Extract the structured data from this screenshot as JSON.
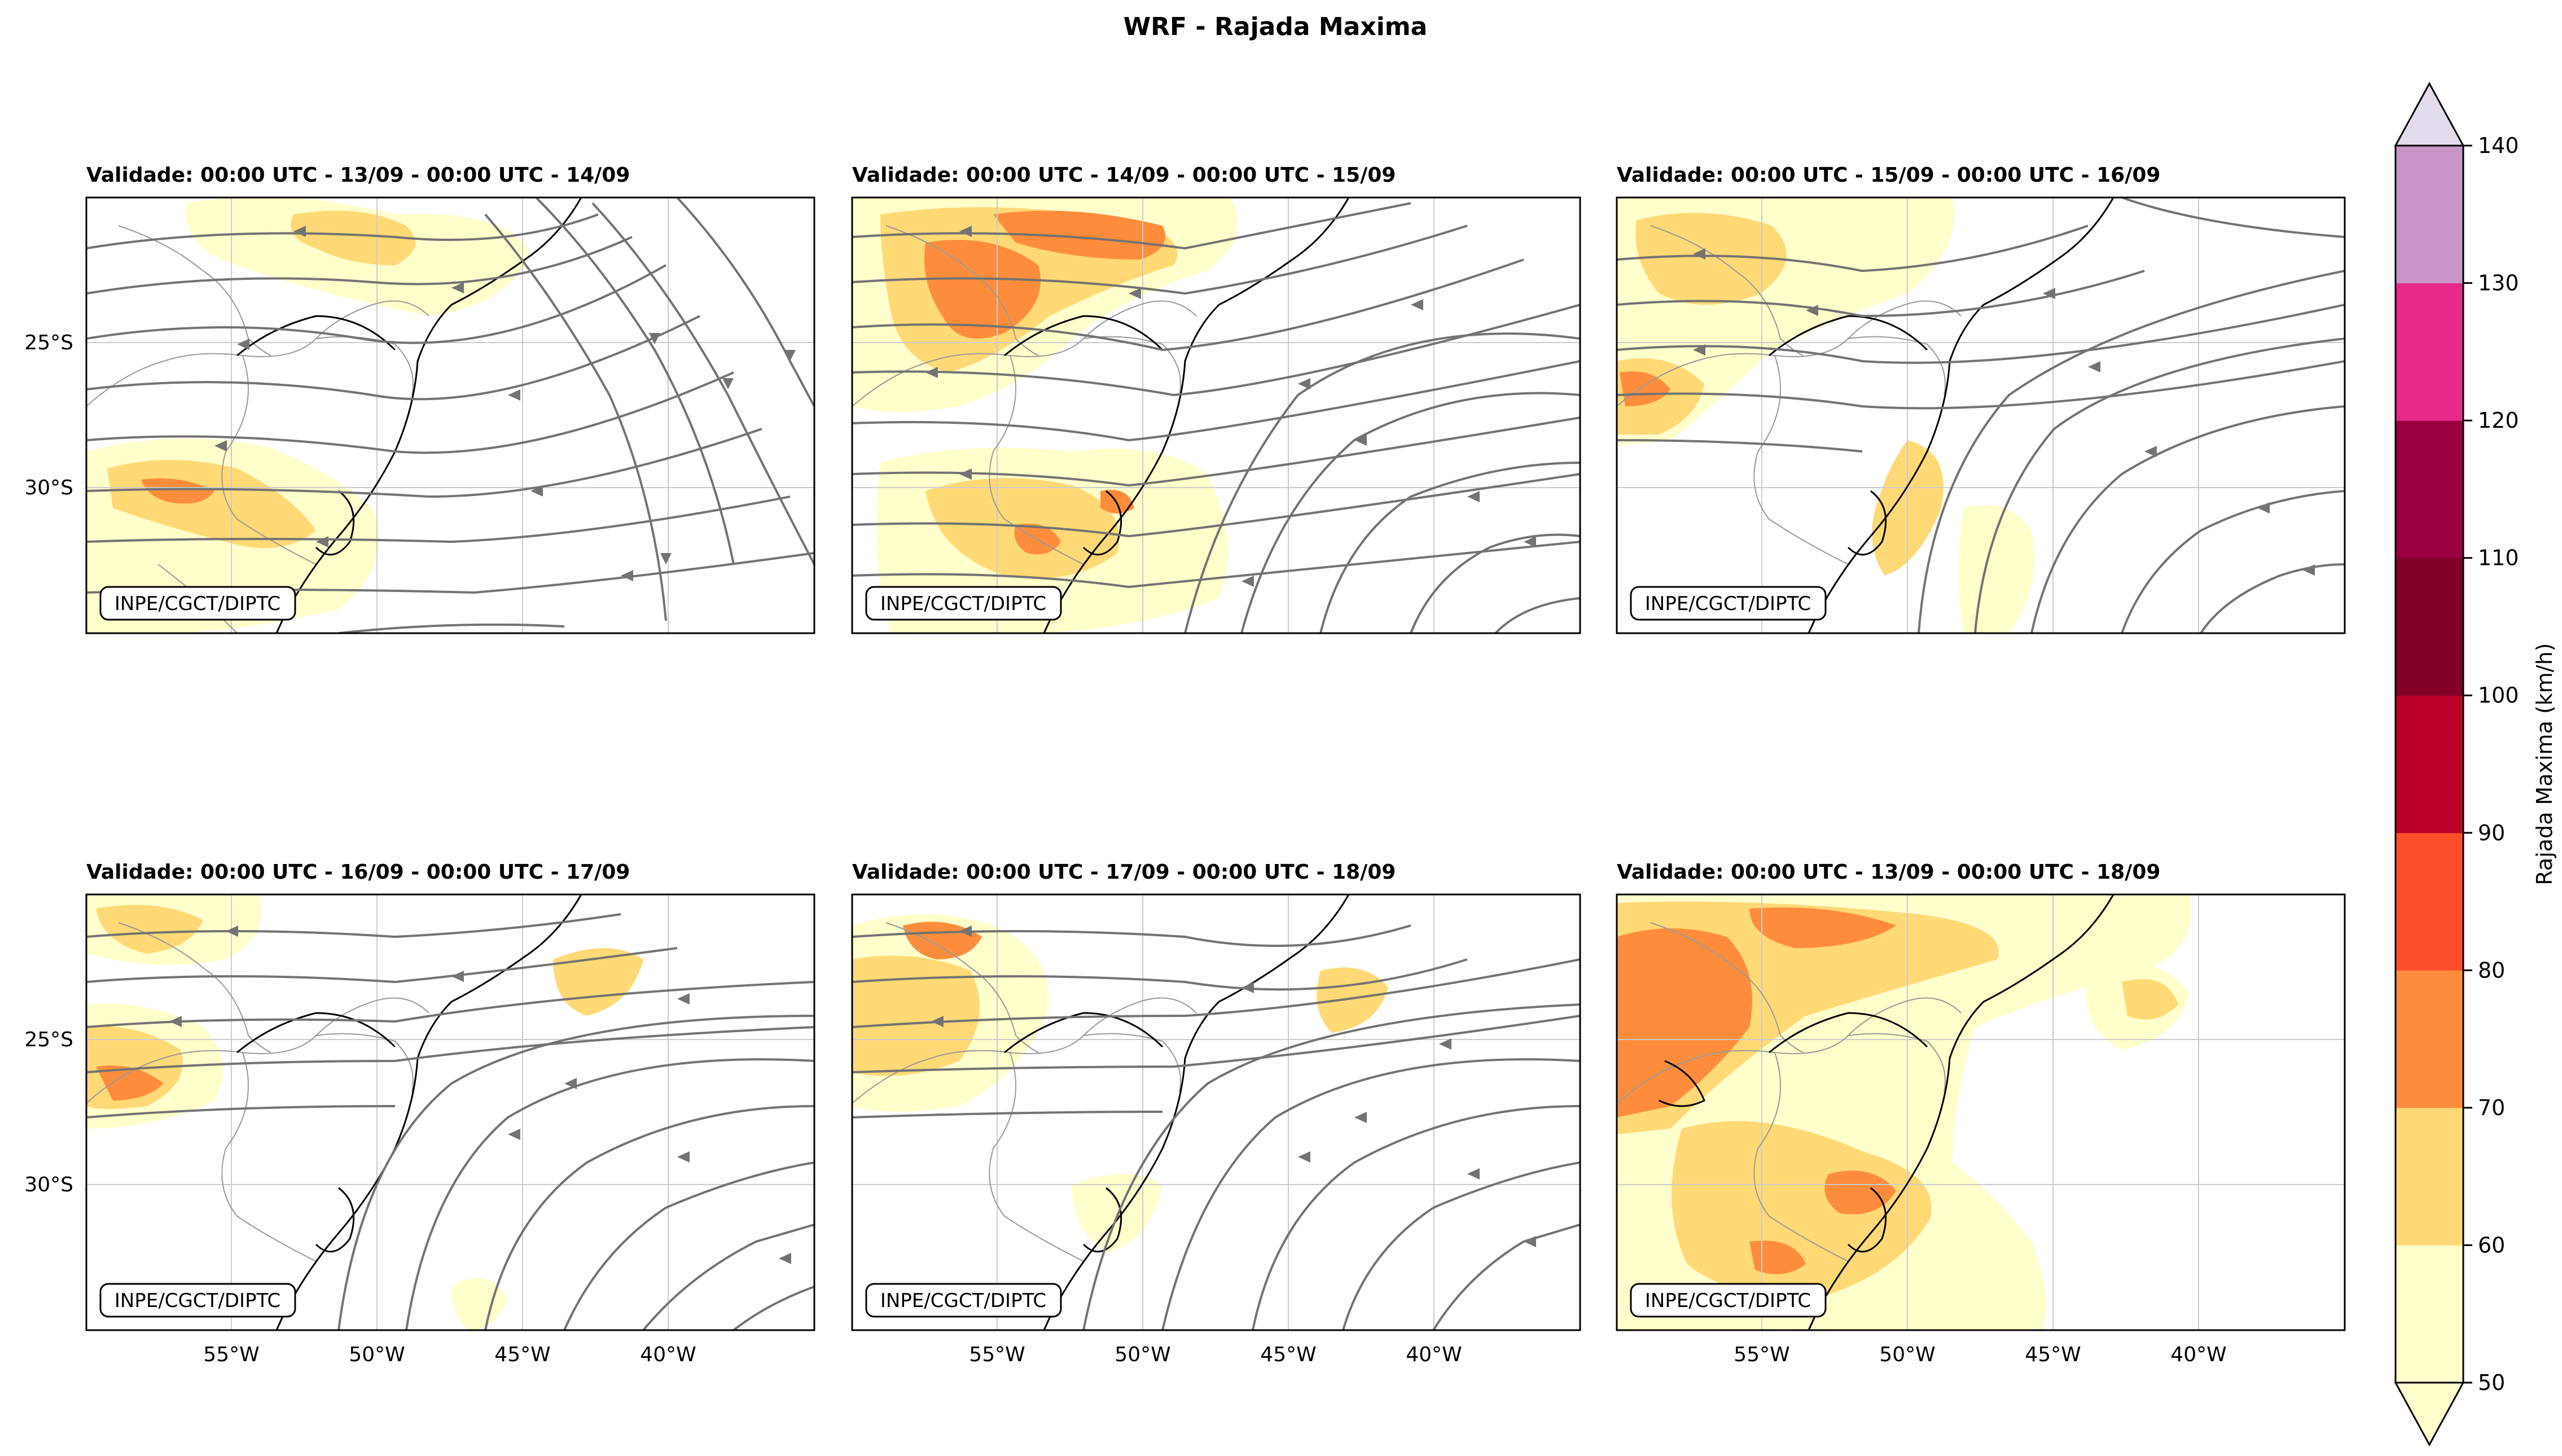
{
  "figure": {
    "title": "WRF - Rajada Maxima",
    "watermark": "INPE/CGCT/DIPTC"
  },
  "panels": [
    {
      "title": "Validade: 00:00 UTC - 13/09 - 00:00 UTC - 14/09"
    },
    {
      "title": "Validade: 00:00 UTC - 14/09 - 00:00 UTC - 15/09"
    },
    {
      "title": "Validade: 00:00 UTC - 15/09 - 00:00 UTC - 16/09"
    },
    {
      "title": "Validade: 00:00 UTC - 16/09 - 00:00 UTC - 17/09"
    },
    {
      "title": "Validade: 00:00 UTC - 17/09 - 00:00 UTC - 18/09"
    },
    {
      "title": "Validade: 00:00 UTC - 13/09 - 00:00 UTC - 18/09"
    }
  ],
  "axes": {
    "lat_labels": [
      "25°S",
      "30°S"
    ],
    "lon_labels": [
      "55°W",
      "50°W",
      "45°W",
      "40°W"
    ]
  },
  "colorbar": {
    "label": "Rajada Maxima (km/h)",
    "ticks": [
      "50",
      "60",
      "70",
      "80",
      "90",
      "100",
      "110",
      "120",
      "130",
      "140"
    ],
    "colors": [
      "#ffffcc",
      "#fed976",
      "#fd8d3c",
      "#fc4e2a",
      "#bd0026",
      "#800026",
      "#9a0040",
      "#e7298a",
      "#c994c7",
      "#e3dced"
    ]
  },
  "styles": {
    "streamline_color": "#737373",
    "coast_color": "#000000",
    "border_color": "#9a9a9a"
  }
}
